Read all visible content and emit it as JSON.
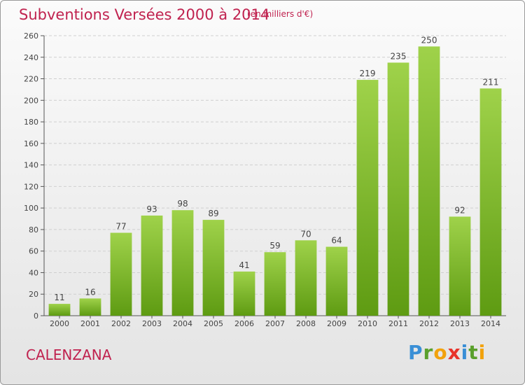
{
  "header": {
    "title": "Subventions Versées 2000 à 2014",
    "unit": "(en milliers d'€)"
  },
  "footer": {
    "commune": "CALENZANA",
    "logo_letters": [
      "P",
      "r",
      "o",
      "x",
      "i",
      "t",
      "i"
    ],
    "logo_colors": [
      "#3a8fd6",
      "#5aa02c",
      "#f2a20c",
      "#e8332a",
      "#3a8fd6",
      "#5aa02c",
      "#f2a20c"
    ]
  },
  "colors": {
    "bar_top": "#9fd24a",
    "bar_bottom": "#5e9b12",
    "grid": "#cfcfcf",
    "axis": "#555555",
    "text": "#444444",
    "accent": "#c0224f"
  },
  "chart_data": {
    "type": "bar",
    "title": "Subventions Versées 2000 à 2014",
    "subtitle": "(en milliers d'€)",
    "categories": [
      "2000",
      "2001",
      "2002",
      "2003",
      "2004",
      "2005",
      "2006",
      "2007",
      "2008",
      "2009",
      "2010",
      "2011",
      "2012",
      "2013",
      "2014"
    ],
    "values": [
      11,
      16,
      77,
      93,
      98,
      89,
      41,
      59,
      70,
      64,
      219,
      235,
      250,
      92,
      211
    ],
    "ylim": [
      0,
      260
    ],
    "yticks": [
      0,
      20,
      40,
      60,
      80,
      100,
      120,
      140,
      160,
      180,
      200,
      220,
      240,
      260
    ],
    "grid": true,
    "data_labels": true,
    "xlabel": "",
    "ylabel": ""
  }
}
